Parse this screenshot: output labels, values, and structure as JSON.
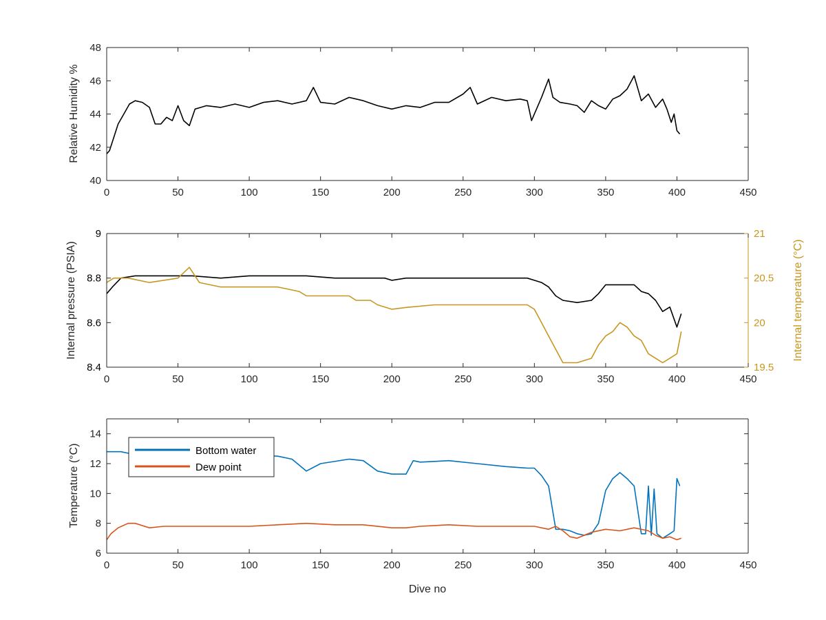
{
  "chart_data": [
    {
      "type": "line",
      "xlabel": "",
      "ylabel": "Relative Humidity %",
      "xlim": [
        0,
        450
      ],
      "ylim": [
        40,
        48
      ],
      "xticks": [
        0,
        50,
        100,
        150,
        200,
        250,
        300,
        350,
        400,
        450
      ],
      "yticks": [
        40,
        42,
        44,
        46,
        48
      ],
      "grid": false,
      "series": [
        {
          "color": "#000000",
          "x": [
            0,
            2,
            5,
            8,
            12,
            16,
            20,
            25,
            30,
            34,
            38,
            42,
            46,
            50,
            54,
            58,
            62,
            66,
            70,
            80,
            90,
            100,
            110,
            120,
            130,
            140,
            145,
            150,
            160,
            170,
            180,
            190,
            200,
            210,
            220,
            230,
            240,
            250,
            255,
            260,
            270,
            280,
            290,
            295,
            298,
            305,
            310,
            313,
            318,
            325,
            330,
            335,
            340,
            345,
            350,
            355,
            360,
            365,
            370,
            375,
            380,
            385,
            390,
            393,
            396,
            398,
            400,
            402
          ],
          "values": [
            41.6,
            41.8,
            42.6,
            43.4,
            44.0,
            44.6,
            44.8,
            44.7,
            44.4,
            43.4,
            43.4,
            43.8,
            43.6,
            44.5,
            43.6,
            43.3,
            44.3,
            44.4,
            44.5,
            44.4,
            44.6,
            44.4,
            44.7,
            44.8,
            44.6,
            44.8,
            45.6,
            44.7,
            44.6,
            45.0,
            44.8,
            44.5,
            44.3,
            44.5,
            44.4,
            44.7,
            44.7,
            45.2,
            45.6,
            44.6,
            45.0,
            44.8,
            44.9,
            44.8,
            43.6,
            45.0,
            46.1,
            45.0,
            44.7,
            44.6,
            44.5,
            44.1,
            44.8,
            44.5,
            44.3,
            44.9,
            45.1,
            45.5,
            46.3,
            44.8,
            45.2,
            44.4,
            44.9,
            44.3,
            43.5,
            44.0,
            43.0,
            42.8
          ]
        }
      ]
    },
    {
      "type": "line",
      "xlabel": "",
      "ylabel": "Internal pressure (PSIA)",
      "ylabel_right": "Internal temperature (°C)",
      "xlim": [
        0,
        450
      ],
      "ylim": [
        8.4,
        9
      ],
      "ylim_right": [
        19.5,
        21
      ],
      "xticks": [
        0,
        50,
        100,
        150,
        200,
        250,
        300,
        350,
        400,
        450
      ],
      "yticks": [
        8.4,
        8.6,
        8.8,
        9
      ],
      "yticks_right": [
        19.5,
        20,
        20.5,
        21
      ],
      "grid": false,
      "series": [
        {
          "axis": "left",
          "color": "#000000",
          "x": [
            0,
            4,
            10,
            20,
            40,
            60,
            80,
            100,
            120,
            140,
            160,
            180,
            195,
            200,
            210,
            240,
            280,
            295,
            300,
            305,
            310,
            315,
            320,
            330,
            340,
            345,
            350,
            360,
            370,
            375,
            380,
            385,
            390,
            395,
            400,
            403
          ],
          "values": [
            8.73,
            8.76,
            8.8,
            8.81,
            8.81,
            8.81,
            8.8,
            8.81,
            8.81,
            8.81,
            8.8,
            8.8,
            8.8,
            8.79,
            8.8,
            8.8,
            8.8,
            8.8,
            8.79,
            8.78,
            8.76,
            8.72,
            8.7,
            8.69,
            8.7,
            8.73,
            8.77,
            8.77,
            8.77,
            8.74,
            8.73,
            8.7,
            8.65,
            8.67,
            8.58,
            8.64
          ]
        },
        {
          "axis": "right",
          "color": "#c8961e",
          "x": [
            0,
            5,
            15,
            30,
            50,
            58,
            65,
            80,
            100,
            120,
            135,
            140,
            150,
            170,
            175,
            185,
            190,
            200,
            210,
            230,
            250,
            280,
            295,
            300,
            305,
            310,
            315,
            320,
            330,
            340,
            345,
            350,
            355,
            360,
            365,
            370,
            375,
            380,
            385,
            390,
            395,
            400,
            403
          ],
          "values": [
            20.45,
            20.5,
            20.5,
            20.45,
            20.5,
            20.62,
            20.45,
            20.4,
            20.4,
            20.4,
            20.35,
            20.3,
            20.3,
            20.3,
            20.25,
            20.25,
            20.2,
            20.15,
            20.17,
            20.2,
            20.2,
            20.2,
            20.2,
            20.15,
            20.0,
            19.85,
            19.7,
            19.55,
            19.55,
            19.6,
            19.75,
            19.85,
            19.9,
            20.0,
            19.95,
            19.85,
            19.8,
            19.65,
            19.6,
            19.55,
            19.6,
            19.65,
            19.9
          ]
        }
      ]
    },
    {
      "type": "line",
      "xlabel": "Dive no",
      "ylabel": "Temperature (°C)",
      "xlim": [
        0,
        450
      ],
      "ylim": [
        6,
        15
      ],
      "xticks": [
        0,
        50,
        100,
        150,
        200,
        250,
        300,
        350,
        400,
        450
      ],
      "yticks": [
        6,
        8,
        10,
        12,
        14
      ],
      "grid": false,
      "legend": "top-left",
      "series": [
        {
          "name": "Bottom water",
          "color": "#0072bd",
          "x": [
            0,
            10,
            20,
            40,
            60,
            80,
            100,
            120,
            130,
            140,
            150,
            170,
            180,
            190,
            200,
            210,
            215,
            220,
            240,
            260,
            280,
            295,
            300,
            305,
            310,
            315,
            320,
            325,
            330,
            335,
            340,
            345,
            350,
            355,
            360,
            365,
            370,
            375,
            378,
            380,
            382,
            384,
            386,
            390,
            395,
            398,
            400,
            402
          ],
          "values": [
            12.8,
            12.8,
            12.6,
            12.6,
            12.7,
            12.5,
            12.6,
            12.5,
            12.3,
            11.5,
            12.0,
            12.3,
            12.2,
            11.5,
            11.3,
            11.3,
            12.2,
            12.1,
            12.2,
            12.0,
            11.8,
            11.7,
            11.7,
            11.2,
            10.5,
            7.6,
            7.6,
            7.5,
            7.3,
            7.2,
            7.3,
            8.0,
            10.2,
            11.0,
            11.4,
            11.0,
            10.5,
            7.3,
            7.3,
            10.5,
            7.2,
            10.3,
            7.3,
            7.0,
            7.3,
            7.5,
            11.0,
            10.5
          ]
        },
        {
          "name": "Dew point",
          "color": "#d95319",
          "x": [
            0,
            3,
            8,
            15,
            20,
            30,
            40,
            60,
            80,
            100,
            120,
            140,
            160,
            180,
            200,
            210,
            220,
            240,
            260,
            280,
            300,
            310,
            315,
            320,
            325,
            330,
            335,
            340,
            350,
            360,
            370,
            380,
            385,
            390,
            395,
            400,
            403
          ],
          "values": [
            6.9,
            7.3,
            7.7,
            8.0,
            8.0,
            7.7,
            7.8,
            7.8,
            7.8,
            7.8,
            7.9,
            8.0,
            7.9,
            7.9,
            7.7,
            7.7,
            7.8,
            7.9,
            7.8,
            7.8,
            7.8,
            7.6,
            7.8,
            7.5,
            7.1,
            7.0,
            7.2,
            7.4,
            7.6,
            7.5,
            7.7,
            7.5,
            7.2,
            7.0,
            7.1,
            6.9,
            7.0
          ]
        }
      ]
    }
  ]
}
